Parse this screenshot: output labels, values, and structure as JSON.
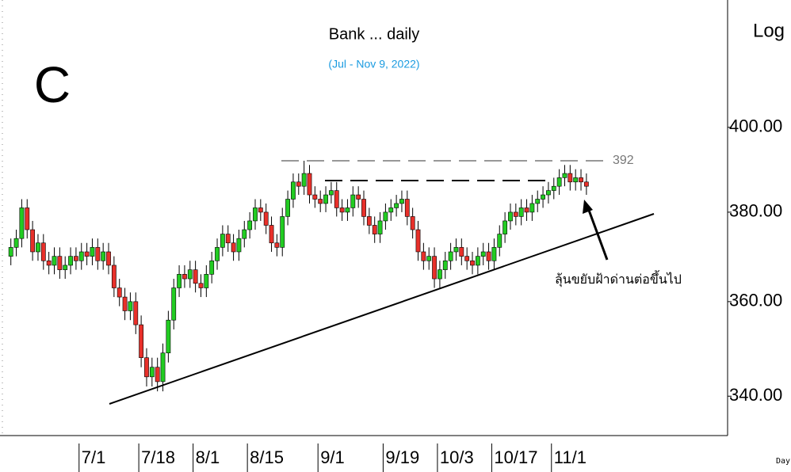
{
  "chart_data": {
    "type": "candlestick",
    "title": "Bank ... daily",
    "subtitle": "(Jul - Nov 9, 2022)",
    "symbol": "C",
    "scale_label": "Log",
    "period_label": "Day",
    "annotation": "ลุ้นขยับฝ้าด่านต่อขึ้นไป",
    "log_scale": true,
    "ylim": [
      332,
      432
    ],
    "yticks": [
      {
        "value": 340,
        "label": "340.00"
      },
      {
        "value": 360,
        "label": "360.00"
      },
      {
        "value": 380,
        "label": "380.00"
      },
      {
        "value": 400,
        "label": "400.00"
      }
    ],
    "xlim": [
      -2,
      132
    ],
    "xticks": [
      {
        "value": 13,
        "label": "7/1"
      },
      {
        "value": 24,
        "label": "7/18"
      },
      {
        "value": 34,
        "label": "8/1"
      },
      {
        "value": 44,
        "label": "8/15"
      },
      {
        "value": 57,
        "label": "9/1"
      },
      {
        "value": 69,
        "label": "9/19"
      },
      {
        "value": 79,
        "label": "10/3"
      },
      {
        "value": 89,
        "label": "10/17"
      },
      {
        "value": 100,
        "label": "11/1"
      }
    ],
    "resistance": {
      "value": 392,
      "label": "392"
    },
    "up_color": "#22cc22",
    "down_color": "#e8302a",
    "open": [
      370,
      372,
      374,
      381,
      376,
      371,
      373,
      369,
      368,
      370,
      367,
      368,
      370,
      369,
      371,
      370,
      372,
      369,
      371,
      368,
      363,
      361,
      358,
      360,
      355,
      348,
      344,
      346,
      343,
      349,
      356,
      363,
      366,
      365,
      367,
      364,
      363,
      366,
      369,
      372,
      375,
      373,
      371,
      374,
      376,
      378,
      381,
      380,
      377,
      373,
      372,
      379,
      383,
      387,
      386,
      389,
      384,
      383,
      382,
      384,
      385,
      381,
      380,
      381,
      384,
      383,
      379,
      377,
      375,
      378,
      380,
      381,
      382,
      383,
      379,
      376,
      371,
      369,
      370,
      365,
      367,
      369,
      371,
      372,
      370,
      369,
      368,
      370,
      371,
      369,
      372,
      375,
      378,
      380,
      379,
      381,
      380,
      382,
      383,
      384,
      385,
      386,
      388,
      389,
      387,
      388,
      387
    ],
    "high": [
      374,
      376,
      383,
      383,
      378,
      375,
      375,
      371,
      372,
      372,
      370,
      372,
      372,
      373,
      373,
      374,
      374,
      373,
      373,
      370,
      365,
      363,
      362,
      362,
      357,
      350,
      348,
      348,
      351,
      358,
      365,
      368,
      368,
      369,
      369,
      366,
      368,
      371,
      374,
      377,
      377,
      375,
      376,
      378,
      380,
      383,
      383,
      382,
      379,
      375,
      381,
      385,
      389,
      389,
      392,
      391,
      386,
      385,
      386,
      387,
      387,
      383,
      383,
      386,
      386,
      385,
      381,
      379,
      380,
      382,
      383,
      384,
      385,
      385,
      381,
      378,
      373,
      372,
      372,
      369,
      371,
      373,
      374,
      374,
      372,
      371,
      372,
      373,
      373,
      374,
      377,
      380,
      382,
      382,
      383,
      383,
      384,
      385,
      386,
      387,
      388,
      390,
      391,
      391,
      390,
      390,
      389
    ],
    "low": [
      368,
      370,
      372,
      374,
      369,
      369,
      367,
      366,
      366,
      365,
      365,
      366,
      367,
      367,
      368,
      368,
      367,
      367,
      366,
      361,
      359,
      356,
      356,
      353,
      346,
      342,
      342,
      341,
      341,
      347,
      354,
      361,
      363,
      363,
      362,
      361,
      361,
      364,
      367,
      370,
      371,
      369,
      369,
      372,
      374,
      376,
      378,
      375,
      371,
      370,
      370,
      377,
      381,
      384,
      384,
      382,
      381,
      380,
      380,
      382,
      379,
      378,
      378,
      379,
      381,
      377,
      375,
      373,
      373,
      376,
      378,
      379,
      380,
      377,
      374,
      369,
      367,
      367,
      363,
      363,
      365,
      367,
      369,
      368,
      367,
      366,
      366,
      368,
      367,
      367,
      370,
      373,
      376,
      377,
      377,
      378,
      378,
      380,
      381,
      382,
      383,
      384,
      386,
      385,
      385,
      385,
      384
    ],
    "close": [
      372,
      374,
      381,
      376,
      371,
      373,
      369,
      368,
      370,
      367,
      368,
      370,
      369,
      371,
      370,
      372,
      369,
      371,
      368,
      363,
      361,
      358,
      360,
      355,
      348,
      344,
      346,
      343,
      349,
      356,
      363,
      366,
      365,
      367,
      364,
      363,
      366,
      369,
      372,
      375,
      373,
      371,
      374,
      376,
      378,
      381,
      380,
      377,
      373,
      372,
      379,
      383,
      387,
      386,
      389,
      384,
      383,
      382,
      384,
      385,
      381,
      380,
      381,
      384,
      383,
      379,
      377,
      375,
      378,
      380,
      381,
      382,
      383,
      379,
      376,
      371,
      369,
      370,
      365,
      367,
      369,
      371,
      372,
      370,
      369,
      368,
      370,
      371,
      369,
      372,
      375,
      378,
      380,
      379,
      381,
      380,
      382,
      383,
      384,
      385,
      386,
      388,
      389,
      387,
      388,
      387,
      386
    ]
  }
}
